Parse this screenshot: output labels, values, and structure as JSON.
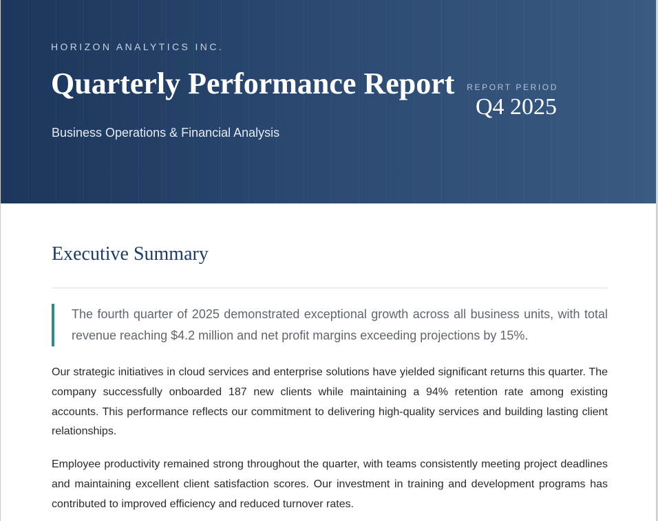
{
  "header": {
    "company": "HORIZON ANALYTICS INC.",
    "title": "Quarterly Performance Report",
    "subtitle": "Business Operations & Financial Analysis",
    "period_label": "REPORT PERIOD",
    "period_value": "Q4 2025"
  },
  "summary": {
    "heading": "Executive Summary",
    "highlight": "The fourth quarter of 2025 demonstrated exceptional growth across all business units, with total revenue reaching $4.2 million and net profit margins exceeding projections by 15%.",
    "paragraphs": [
      "Our strategic initiatives in cloud services and enterprise solutions have yielded significant returns this quarter. The company successfully onboarded 187 new clients while maintaining a 94% retention rate among existing accounts. This performance reflects our commitment to delivering high-quality services and building lasting client relationships.",
      "Employee productivity remained strong throughout the quarter, with teams consistently meeting project deadlines and maintaining excellent client satisfaction scores. Our investment in training and development programs has contributed to improved efficiency and reduced turnover rates."
    ]
  },
  "colors": {
    "header_bg": "#1f3b62",
    "accent": "#2e8a83",
    "heading": "#1f3b62"
  }
}
